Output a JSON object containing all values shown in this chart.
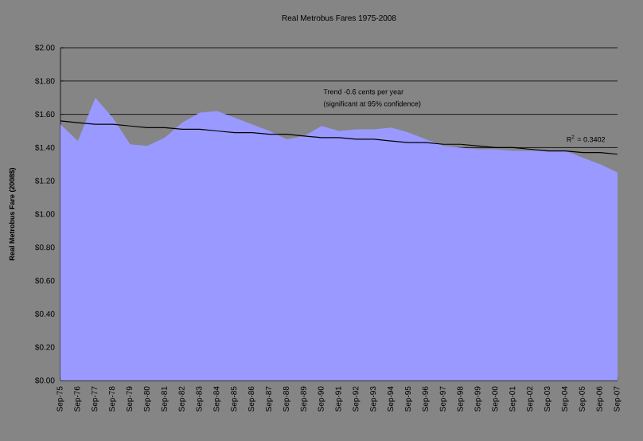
{
  "chart_data": {
    "type": "area",
    "title": "Real Metrobus Fares 1975-2008",
    "ylabel": "Real Metrobus Fare (2008$)",
    "categories": [
      "Sep-75",
      "Sep-76",
      "Sep-77",
      "Sep-78",
      "Sep-79",
      "Sep-80",
      "Sep-81",
      "Sep-82",
      "Sep-83",
      "Sep-84",
      "Sep-85",
      "Sep-86",
      "Sep-87",
      "Sep-88",
      "Sep-89",
      "Sep-90",
      "Sep-91",
      "Sep-92",
      "Sep-93",
      "Sep-94",
      "Sep-95",
      "Sep-96",
      "Sep-97",
      "Sep-98",
      "Sep-99",
      "Sep-00",
      "Sep-01",
      "Sep-02",
      "Sep-03",
      "Sep-04",
      "Sep-05",
      "Sep-06",
      "Sep-07"
    ],
    "series": [
      {
        "color": "#9999ff",
        "values": [
          1.54,
          1.44,
          1.7,
          1.58,
          1.42,
          1.41,
          1.46,
          1.55,
          1.61,
          1.62,
          1.58,
          1.54,
          1.5,
          1.45,
          1.47,
          1.53,
          1.5,
          1.51,
          1.51,
          1.52,
          1.49,
          1.45,
          1.41,
          1.4,
          1.39,
          1.39,
          1.38,
          1.38,
          1.38,
          1.38,
          1.34,
          1.3,
          1.25
        ]
      },
      {
        "type": "line",
        "color": "#000000",
        "values": [
          1.56,
          1.55,
          1.54,
          1.54,
          1.53,
          1.52,
          1.52,
          1.51,
          1.51,
          1.5,
          1.49,
          1.49,
          1.48,
          1.48,
          1.47,
          1.46,
          1.46,
          1.45,
          1.45,
          1.44,
          1.43,
          1.43,
          1.42,
          1.42,
          1.41,
          1.4,
          1.4,
          1.39,
          1.38,
          1.38,
          1.37,
          1.37,
          1.36
        ]
      }
    ],
    "ylim": [
      0,
      2
    ],
    "yticks": [
      {
        "value": 0,
        "label": "$0.00"
      },
      {
        "value": 0.2,
        "label": "$0.20"
      },
      {
        "value": 0.4,
        "label": "$0.40"
      },
      {
        "value": 0.6,
        "label": "$0.60"
      },
      {
        "value": 0.8,
        "label": "$0.80"
      },
      {
        "value": 1,
        "label": "$1.00"
      },
      {
        "value": 1.2,
        "label": "$1.20"
      },
      {
        "value": 1.4,
        "label": "$1.40"
      },
      {
        "value": 1.6,
        "label": "$1.60"
      },
      {
        "value": 1.8,
        "label": "$1.80"
      },
      {
        "value": 2,
        "label": "$2.00"
      }
    ],
    "grid": "y",
    "annotations": [
      "Trend -0.6 cents per year",
      "(significant at 95% confidence)",
      "R$^{2}$ = 0.3402"
    ]
  }
}
